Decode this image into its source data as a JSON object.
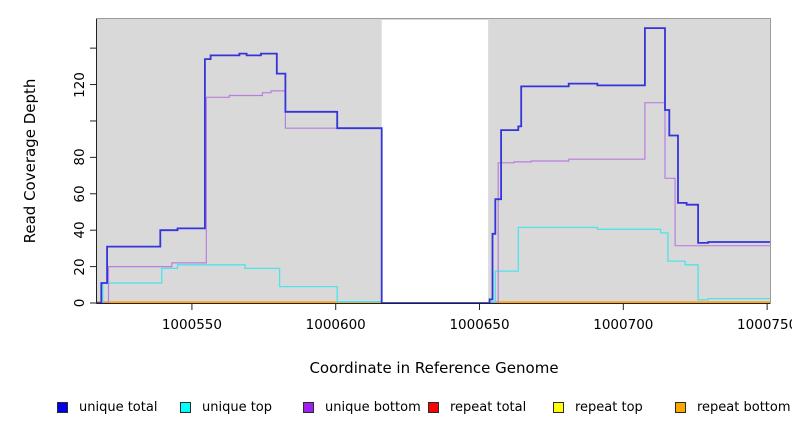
{
  "figure": {
    "xlabel": "Coordinate in Reference Genome",
    "ylabel": "Read Coverage Depth"
  },
  "chart_data": {
    "type": "line",
    "step": true,
    "title": "",
    "xlabel": "Coordinate in Reference Genome",
    "ylabel": "Read Coverage Depth",
    "xlim": [
      1000517,
      1000751
    ],
    "ylim": [
      0,
      156
    ],
    "grid": false,
    "panel_background": "#d9d9d9",
    "panel_border_color": "#9b9b9b",
    "axis_color": "#222222",
    "no_data_gap": {
      "x_start": 1000616,
      "x_end": 1000653,
      "color": "#ffffff"
    },
    "x_ticks": {
      "values": [
        1000550,
        1000600,
        1000650,
        1000700,
        1000750
      ],
      "labels": [
        "1000550",
        "1000600",
        "1000650",
        "1000700",
        "1000750"
      ]
    },
    "y_ticks": {
      "values": [
        0,
        20,
        40,
        60,
        80,
        100,
        120,
        140
      ],
      "labels": [
        "0",
        "20",
        "40",
        "60",
        "80",
        "",
        "120",
        ""
      ]
    },
    "legend": {
      "position": "bottom",
      "order": [
        "unique total",
        "unique top",
        "unique bottom",
        "repeat total",
        "repeat top",
        "repeat bottom"
      ]
    },
    "draw_order": [
      "repeat total",
      "repeat top",
      "repeat bottom",
      "unique top",
      "unique bottom",
      "unique total"
    ],
    "series": [
      {
        "name": "unique total",
        "legend_color": "#0000ee",
        "line_color": "#3434db",
        "line_width": 1.8,
        "points": [
          [
            1000517,
            0
          ],
          [
            1000518.5,
            11
          ],
          [
            1000520.5,
            31
          ],
          [
            1000539,
            40
          ],
          [
            1000545,
            41
          ],
          [
            1000554.5,
            134
          ],
          [
            1000556.5,
            136
          ],
          [
            1000566.5,
            137
          ],
          [
            1000569,
            136
          ],
          [
            1000574,
            137
          ],
          [
            1000579.5,
            126
          ],
          [
            1000582.5,
            105
          ],
          [
            1000600.5,
            96
          ],
          [
            1000616,
            0
          ],
          [
            1000653.5,
            2
          ],
          [
            1000654.5,
            38
          ],
          [
            1000655.5,
            57
          ],
          [
            1000657.5,
            95
          ],
          [
            1000663.5,
            97
          ],
          [
            1000664.5,
            119
          ],
          [
            1000681,
            120.5
          ],
          [
            1000691,
            119.5
          ],
          [
            1000707.5,
            151
          ],
          [
            1000714.5,
            106
          ],
          [
            1000716,
            92
          ],
          [
            1000719,
            55
          ],
          [
            1000722,
            54
          ],
          [
            1000726,
            33
          ],
          [
            1000729.5,
            33.5
          ]
        ]
      },
      {
        "name": "unique top",
        "legend_color": "#00ffff",
        "line_color": "#4fe3ea",
        "line_width": 1.3,
        "points": [
          [
            1000517,
            0
          ],
          [
            1000519,
            11
          ],
          [
            1000539.5,
            19
          ],
          [
            1000545,
            21
          ],
          [
            1000568.5,
            19
          ],
          [
            1000580.5,
            9
          ],
          [
            1000600.5,
            0.7
          ],
          [
            1000655.5,
            17.5
          ],
          [
            1000663.5,
            41.5
          ],
          [
            1000691,
            40.5
          ],
          [
            1000713,
            38.5
          ],
          [
            1000715.5,
            23
          ],
          [
            1000721.5,
            21
          ],
          [
            1000726,
            1.7
          ],
          [
            1000729.5,
            2.4
          ]
        ]
      },
      {
        "name": "unique bottom",
        "legend_color": "#a020f0",
        "line_color": "#b87fde",
        "line_width": 1.2,
        "points": [
          [
            1000517,
            0
          ],
          [
            1000521,
            20
          ],
          [
            1000543,
            22
          ],
          [
            1000555,
            113
          ],
          [
            1000563,
            114
          ],
          [
            1000574.5,
            115.5
          ],
          [
            1000577.5,
            116.5
          ],
          [
            1000582.5,
            96
          ],
          [
            1000616,
            0
          ],
          [
            1000656.5,
            77
          ],
          [
            1000662,
            77.5
          ],
          [
            1000668,
            78
          ],
          [
            1000681,
            79
          ],
          [
            1000707.5,
            110
          ],
          [
            1000714.5,
            68.5
          ],
          [
            1000718,
            31.5
          ]
        ]
      },
      {
        "name": "repeat total",
        "legend_color": "#ff0000",
        "line_color": "#ff0000",
        "line_width": 1.2,
        "points": [
          [
            1000517,
            0.5
          ]
        ]
      },
      {
        "name": "repeat top",
        "legend_color": "#ffff00",
        "line_color": "#ffff00",
        "line_width": 1.2,
        "points": [
          [
            1000517,
            0.5
          ]
        ]
      },
      {
        "name": "repeat bottom",
        "legend_color": "#ffa500",
        "line_color": "#ffa318",
        "line_width": 1.7,
        "points": [
          [
            1000517,
            0.5
          ]
        ]
      }
    ]
  }
}
